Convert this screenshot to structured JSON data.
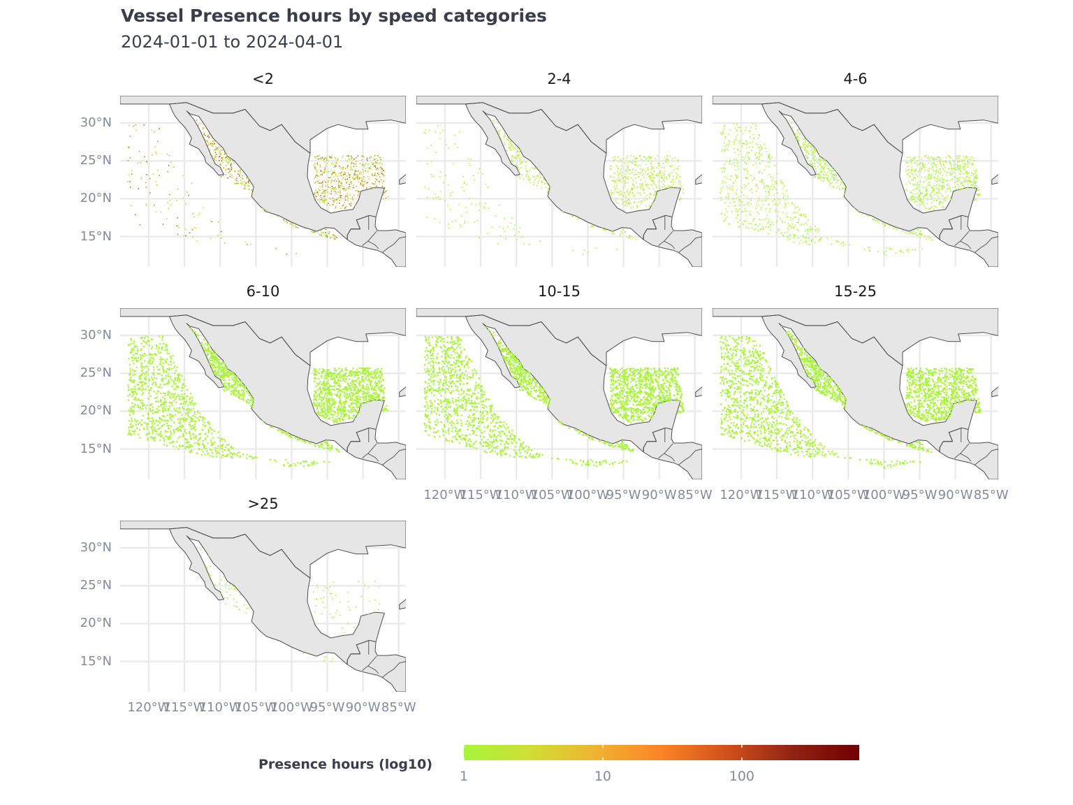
{
  "title": "Vessel Presence hours by speed categories",
  "subtitle": "2024-01-01 to 2024-04-01",
  "panels": [
    {
      "label": "<2",
      "intensity": "high"
    },
    {
      "label": "2-4",
      "intensity": "medium"
    },
    {
      "label": "4-6",
      "intensity": "low"
    },
    {
      "label": "6-10",
      "intensity": "low"
    },
    {
      "label": "10-15",
      "intensity": "low"
    },
    {
      "label": "15-25",
      "intensity": "low"
    },
    {
      "label": ">25",
      "intensity": "sparse"
    }
  ],
  "y_axis": {
    "labels": [
      "30°N",
      "25°N",
      "20°N",
      "15°N"
    ],
    "values": [
      30,
      25,
      20,
      15
    ]
  },
  "x_axis": {
    "labels": [
      "120°W",
      "115°W",
      "110°W",
      "105°W",
      "100°W",
      "95°W",
      "90°W",
      "85°W"
    ],
    "values": [
      -120,
      -115,
      -110,
      -105,
      -100,
      -95,
      -90,
      -85
    ]
  },
  "legend": {
    "title": "Presence hours (log10)",
    "ticks": [
      "1",
      "10",
      "100"
    ],
    "tick_values": [
      1,
      10,
      100
    ],
    "range": [
      1,
      700
    ],
    "colors": [
      "#a6f53a",
      "#d0de34",
      "#f0b330",
      "#fb8427",
      "#d0501c",
      "#8f2311",
      "#6f0000"
    ]
  },
  "colors": {
    "land": "#e6e6e6",
    "border": "#4d4d4d",
    "grid": "#ebebeb",
    "text": "#3a3d4a",
    "axis_text": "#848a99"
  }
}
